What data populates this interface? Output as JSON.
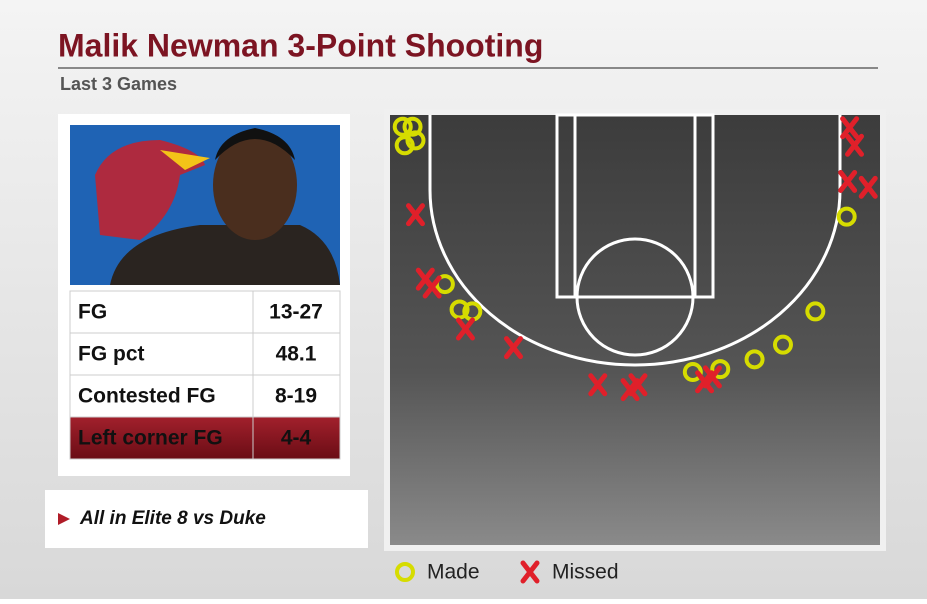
{
  "header": {
    "title": "Malik Newman 3-Point Shooting",
    "subtitle": "Last 3 Games"
  },
  "table": {
    "rows": [
      [
        "FG",
        "13-27"
      ],
      [
        "FG pct",
        "48.1"
      ],
      [
        "Contested FG",
        "8-19"
      ],
      [
        "Left corner FG",
        "4-4"
      ]
    ]
  },
  "note": "All in Elite 8 vs Duke",
  "chart_data": {
    "type": "scatter",
    "xlim": [
      0,
      50
    ],
    "ylim": [
      0,
      44
    ],
    "series": [
      {
        "name": "Made",
        "color": "#d6dc00",
        "x": [
          1.3,
          2.3,
          1.5,
          2.6,
          5.6,
          7.1,
          8.4,
          30.9,
          33.7,
          37.2,
          40.1,
          43.4,
          46.6
        ],
        "values": [
          1.2,
          1.2,
          3.1,
          2.6,
          17.3,
          19.9,
          20.1,
          26.3,
          26.0,
          25.0,
          23.5,
          20.1,
          10.4
        ]
      },
      {
        "name": "Missed",
        "color": "#e0202a",
        "x": [
          2.6,
          3.6,
          4.3,
          7.7,
          12.6,
          21.2,
          24.5,
          25.3,
          32.1,
          32.9,
          46.9,
          47.4,
          46.7,
          48.8
        ],
        "values": [
          10.2,
          16.8,
          17.6,
          21.9,
          23.8,
          27.6,
          28.1,
          27.6,
          27.3,
          26.8,
          1.3,
          3.1,
          6.8,
          7.4
        ]
      }
    ]
  }
}
